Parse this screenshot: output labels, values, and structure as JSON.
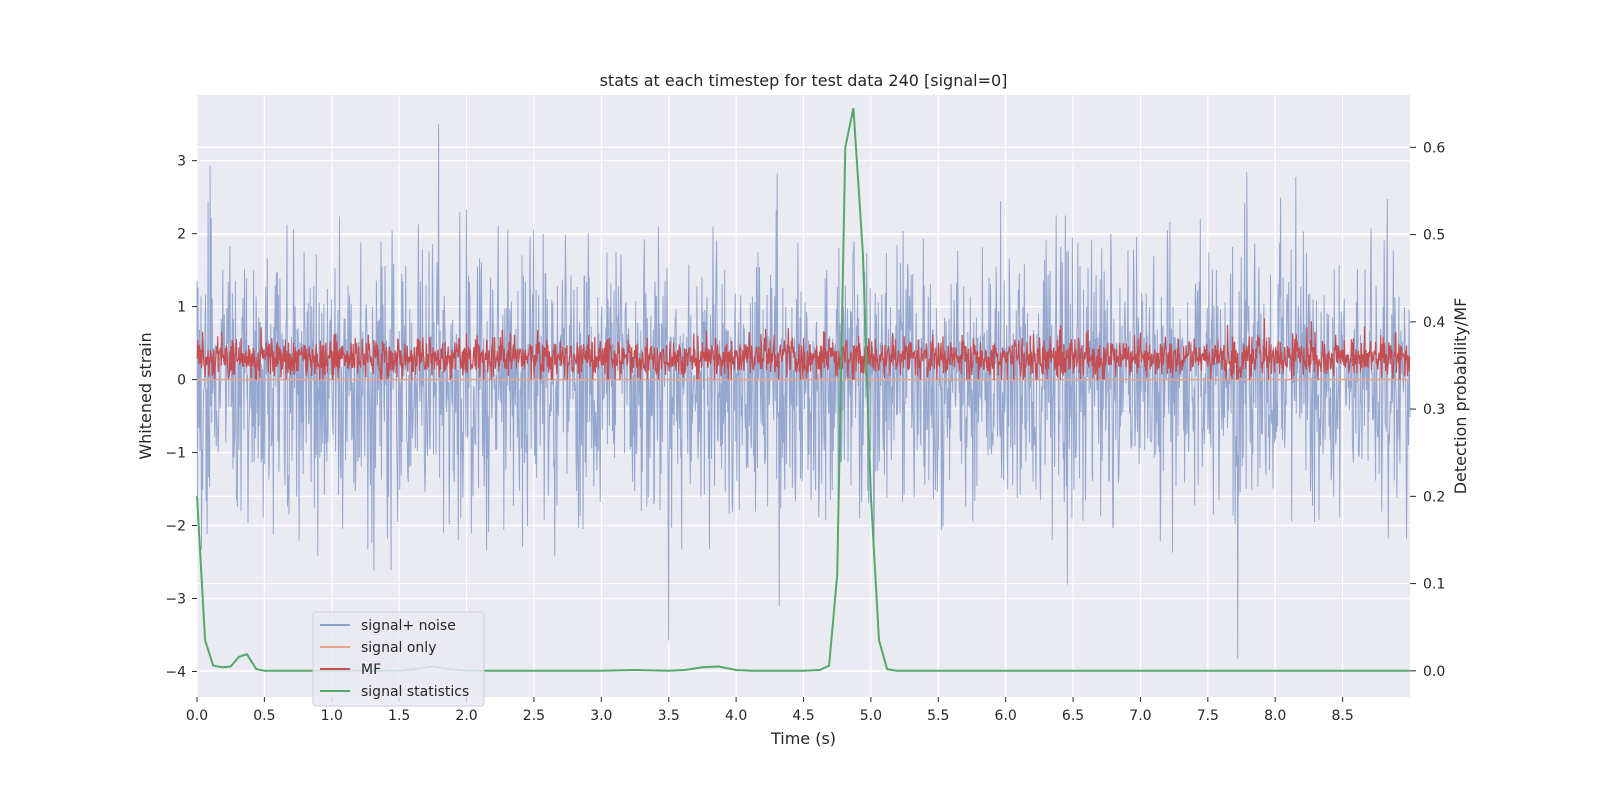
{
  "chart_data": {
    "type": "line",
    "title": "stats at each timestep for test data 240 [signal=0]",
    "xlabel": "Time (s)",
    "ylabel": "Whitened strain",
    "y2label": "Detection probability/MF",
    "xlim": [
      0.0,
      9.0
    ],
    "ylim": [
      -4.35,
      3.9
    ],
    "y2lim": [
      -0.03,
      0.66
    ],
    "xticks": [
      0.0,
      0.5,
      1.0,
      1.5,
      2.0,
      2.5,
      3.0,
      3.5,
      4.0,
      4.5,
      5.0,
      5.5,
      6.0,
      6.5,
      7.0,
      7.5,
      8.0,
      8.5
    ],
    "xtick_labels": [
      "0.0",
      "0.5",
      "1.0",
      "1.5",
      "2.0",
      "2.5",
      "3.0",
      "3.5",
      "4.0",
      "4.5",
      "5.0",
      "5.5",
      "6.0",
      "6.5",
      "7.0",
      "7.5",
      "8.0",
      "8.5"
    ],
    "yticks": [
      3,
      2,
      1,
      0,
      -1,
      -2,
      -3,
      -4
    ],
    "ytick_labels": [
      "3",
      "2",
      "1",
      "0",
      "−1",
      "−2",
      "−3",
      "−4"
    ],
    "y2ticks": [
      0.6,
      0.5,
      0.4,
      0.3,
      0.2,
      0.1,
      0.0
    ],
    "y2tick_labels": [
      "0.6",
      "0.5",
      "0.4",
      "0.3",
      "0.2",
      "0.1",
      "0.0"
    ],
    "grid": true,
    "legend_position": "lower-left",
    "series": [
      {
        "name": "signal+ noise",
        "color": "#8da0cb",
        "axis": "left",
        "kind": "noise",
        "amplitude_range": [
          -4.0,
          3.5
        ]
      },
      {
        "name": "signal only",
        "color": "#e8a48a",
        "axis": "left",
        "x": [
          0,
          9
        ],
        "y": [
          0,
          0
        ]
      },
      {
        "name": "MF",
        "color": "#c44e52",
        "axis": "left",
        "kind": "noise-positive",
        "amplitude_range": [
          0.0,
          1.0
        ]
      },
      {
        "name": "signal statistics",
        "color": "#55a868",
        "axis": "right",
        "x": [
          0.0,
          0.06,
          0.12,
          0.19,
          0.25,
          0.31,
          0.37,
          0.44,
          0.5,
          0.56,
          1.0,
          1.5,
          1.62,
          1.75,
          1.87,
          2.0,
          3.0,
          3.25,
          3.5,
          3.62,
          3.75,
          3.87,
          4.0,
          4.12,
          4.5,
          4.62,
          4.69,
          4.75,
          4.81,
          4.87,
          4.94,
          5.0,
          5.06,
          5.12,
          5.19,
          5.25,
          6.0,
          7.0,
          8.0,
          9.0
        ],
        "y": [
          0.2,
          0.035,
          0.006,
          0.004,
          0.005,
          0.016,
          0.019,
          0.002,
          0.0,
          0.0,
          0.0,
          0.0,
          0.002,
          0.005,
          0.002,
          0.0,
          0.0,
          0.001,
          0.0,
          0.001,
          0.004,
          0.005,
          0.001,
          0.0,
          0.0,
          0.001,
          0.006,
          0.11,
          0.6,
          0.645,
          0.48,
          0.2,
          0.035,
          0.002,
          0.0,
          0.0,
          0.0,
          0.0,
          0.0,
          0.0
        ]
      }
    ]
  }
}
